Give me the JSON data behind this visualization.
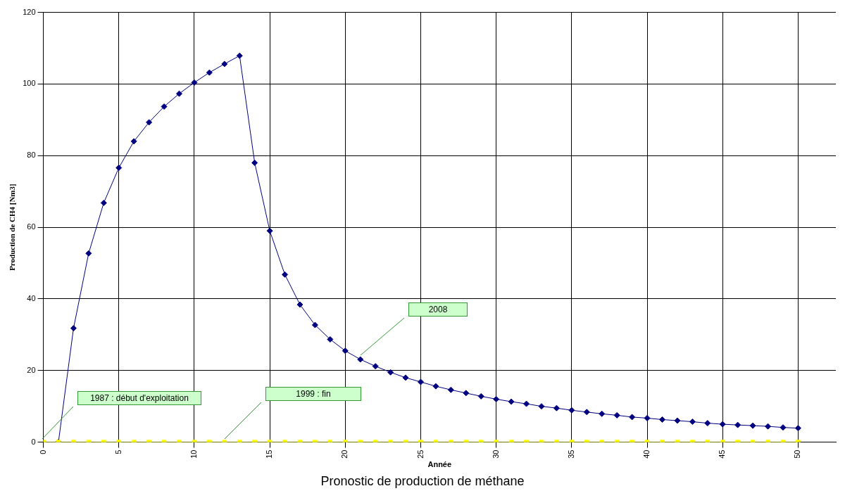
{
  "chart_data": {
    "type": "line",
    "title": "Pronostic de production de méthane",
    "xlabel": "Année",
    "ylabel": "Production de CH4 [Nm3]",
    "x": [
      0,
      1,
      2,
      3,
      4,
      5,
      6,
      7,
      8,
      9,
      10,
      11,
      12,
      13,
      14,
      15,
      16,
      17,
      18,
      19,
      20,
      21,
      22,
      23,
      24,
      25,
      26,
      27,
      28,
      29,
      30,
      31,
      32,
      33,
      34,
      35,
      36,
      37,
      38,
      39,
      40,
      41,
      42,
      43,
      44,
      45,
      46,
      47,
      48,
      49,
      50
    ],
    "series": [
      {
        "color": "#000080",
        "marker": "diamond",
        "values": [
          0,
          0,
          31.8,
          52.7,
          66.8,
          76.6,
          84,
          89.3,
          93.7,
          97.3,
          100.4,
          103.2,
          105.6,
          107.9,
          78,
          59,
          46.8,
          38.4,
          32.7,
          28.7,
          25.5,
          23.1,
          21.2,
          19.5,
          18,
          16.8,
          15.6,
          14.6,
          13.7,
          12.8,
          12,
          11.3,
          10.7,
          10,
          9.5,
          8.9,
          8.4,
          7.9,
          7.5,
          7,
          6.7,
          6.3,
          6,
          5.7,
          5.3,
          5,
          4.8,
          4.6,
          4.4,
          4.1,
          3.9
        ]
      },
      {
        "color": "#ffff00",
        "marker": "square",
        "values": [
          0,
          0,
          0,
          0,
          0,
          0,
          0,
          0,
          0,
          0,
          0,
          0,
          0,
          0,
          0,
          0,
          0,
          0,
          0,
          0,
          0,
          0,
          0,
          0,
          0,
          0,
          0,
          0,
          0,
          0,
          0,
          0,
          0,
          0,
          0,
          0,
          0,
          0,
          0,
          0,
          0,
          0,
          0,
          0,
          0,
          0,
          0,
          0,
          0,
          0,
          0
        ]
      }
    ],
    "xlim": [
      0,
      52.5
    ],
    "xticks": [
      0,
      5,
      10,
      15,
      20,
      25,
      30,
      35,
      40,
      45,
      50
    ],
    "ylim": [
      0,
      120
    ],
    "yticks": [
      0,
      20,
      40,
      60,
      80,
      100,
      120
    ],
    "grid": true,
    "legend": false,
    "annotations": [
      "1987 : début d'exploitation",
      "1999 : fin",
      "2008"
    ]
  }
}
